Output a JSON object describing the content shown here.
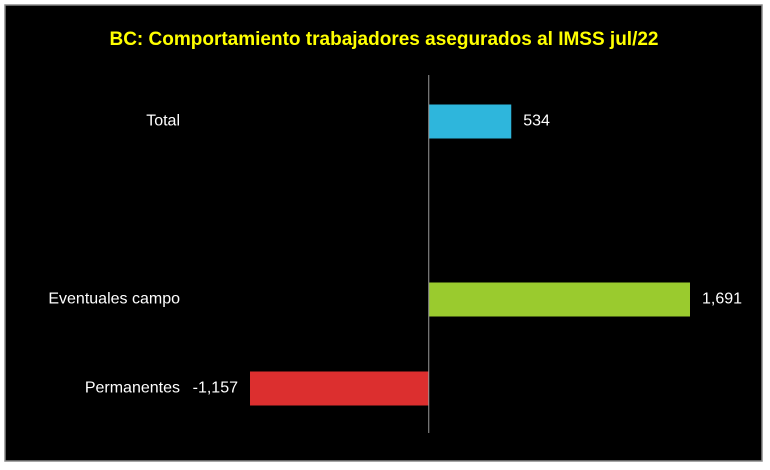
{
  "chart_data": {
    "type": "hbar",
    "title": "BC: Comportamiento trabajadores asegurados al IMSS jul/22",
    "categories": [
      "Total",
      null,
      "Eventuales campo",
      "Permanentes"
    ],
    "values": [
      534,
      null,
      1691,
      -1157
    ],
    "value_labels": [
      "534",
      null,
      "1,691",
      "-1,157"
    ],
    "colors": [
      "#2eb6dc",
      null,
      "#9acb2e",
      "#dc2f2f"
    ]
  }
}
